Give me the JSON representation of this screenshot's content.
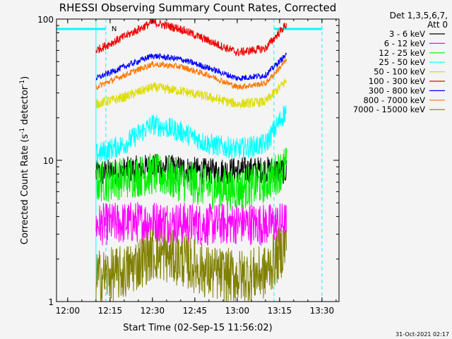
{
  "chart_data": {
    "type": "line",
    "title": "RHESSI Observing Summary Count Rates, Corrected",
    "xlabel": "Start Time (02-Sep-15 11:56:02)",
    "ylabel_main": "Corrected Count Rate (s",
    "ylabel_sup1": "-1",
    "ylabel_mid": " detector",
    "ylabel_sup2": "-1",
    "ylabel_end": ")",
    "y_scale": "log",
    "ylim": [
      1,
      100
    ],
    "xlim": [
      "11:56:02",
      "13:36:02"
    ],
    "x_ticks": [
      "12:00",
      "12:15",
      "12:30",
      "12:45",
      "13:00",
      "13:15",
      "13:30"
    ],
    "y_ticks": [
      "1",
      "10",
      "100"
    ],
    "legend_header": [
      "Det 1,3,5,6,7,",
      "Att 0"
    ],
    "legend_position": "right",
    "footer_date": "31-Oct-2021 02:17",
    "flag_label": "N",
    "data_start": "12:10:00",
    "data_end": "13:17:30",
    "saa_lines": [
      "12:10:00",
      "12:13:30",
      "13:13:00",
      "13:30:00"
    ],
    "series": [
      {
        "name": "3 - 6 keV",
        "color": "#000000",
        "x": [
          "12:10",
          "12:20",
          "12:30",
          "12:40",
          "12:50",
          "13:00",
          "13:10",
          "13:17"
        ],
        "values": [
          8,
          8.5,
          9,
          8.7,
          8.3,
          8.5,
          8.6,
          8.4
        ],
        "noise": 0.22
      },
      {
        "name": "6 - 12 keV",
        "color": "#ff00ff",
        "x": [
          "12:10",
          "12:20",
          "12:30",
          "12:40",
          "12:50",
          "13:00",
          "13:10",
          "13:17"
        ],
        "values": [
          3.5,
          3.6,
          3.7,
          3.6,
          3.5,
          3.6,
          3.5,
          3.6
        ],
        "noise": 0.35
      },
      {
        "name": "12 - 25 keV",
        "color": "#00ee00",
        "x": [
          "12:10",
          "12:20",
          "12:30",
          "12:40",
          "12:50",
          "13:00",
          "13:10",
          "13:17"
        ],
        "values": [
          7,
          7.5,
          8,
          7.2,
          6.5,
          6.2,
          7,
          9
        ],
        "noise": 0.35
      },
      {
        "name": "25 - 50 keV",
        "color": "#00ffff",
        "x": [
          "12:10",
          "12:20",
          "12:30",
          "12:40",
          "12:50",
          "13:00",
          "13:10",
          "13:17"
        ],
        "values": [
          11,
          13,
          18,
          16,
          13,
          12,
          13,
          22
        ],
        "noise": 0.18
      },
      {
        "name": "50 - 100 keV",
        "color": "#dddd00",
        "x": [
          "12:10",
          "12:20",
          "12:30",
          "12:40",
          "12:50",
          "13:00",
          "13:10",
          "13:17"
        ],
        "values": [
          25,
          28,
          33,
          31,
          28,
          25,
          26,
          36
        ],
        "noise": 0.08
      },
      {
        "name": "100 - 300 keV",
        "color": "#ee0000",
        "x": [
          "12:10",
          "12:20",
          "12:30",
          "12:40",
          "12:50",
          "13:00",
          "13:10",
          "13:17"
        ],
        "values": [
          60,
          75,
          95,
          85,
          70,
          58,
          62,
          90
        ],
        "noise": 0.07
      },
      {
        "name": "300 - 800 keV",
        "color": "#0000ff",
        "x": [
          "12:10",
          "12:20",
          "12:30",
          "12:40",
          "12:50",
          "13:00",
          "13:10",
          "13:17"
        ],
        "values": [
          38,
          46,
          55,
          52,
          45,
          38,
          40,
          55
        ],
        "noise": 0.05
      },
      {
        "name": "800 - 7000 keV",
        "color": "#ff7700",
        "x": [
          "12:10",
          "12:20",
          "12:30",
          "12:40",
          "12:50",
          "13:00",
          "13:10",
          "13:17"
        ],
        "values": [
          33,
          40,
          48,
          46,
          40,
          33,
          35,
          50
        ],
        "noise": 0.05
      },
      {
        "name": "7000 - 15000 keV",
        "color": "#808000",
        "x": [
          "12:10",
          "12:20",
          "12:30",
          "12:40",
          "12:50",
          "13:00",
          "13:10",
          "13:17"
        ],
        "values": [
          1.5,
          1.6,
          2.2,
          2.0,
          1.6,
          1.5,
          1.6,
          2.5
        ],
        "noise": 0.45
      }
    ]
  }
}
